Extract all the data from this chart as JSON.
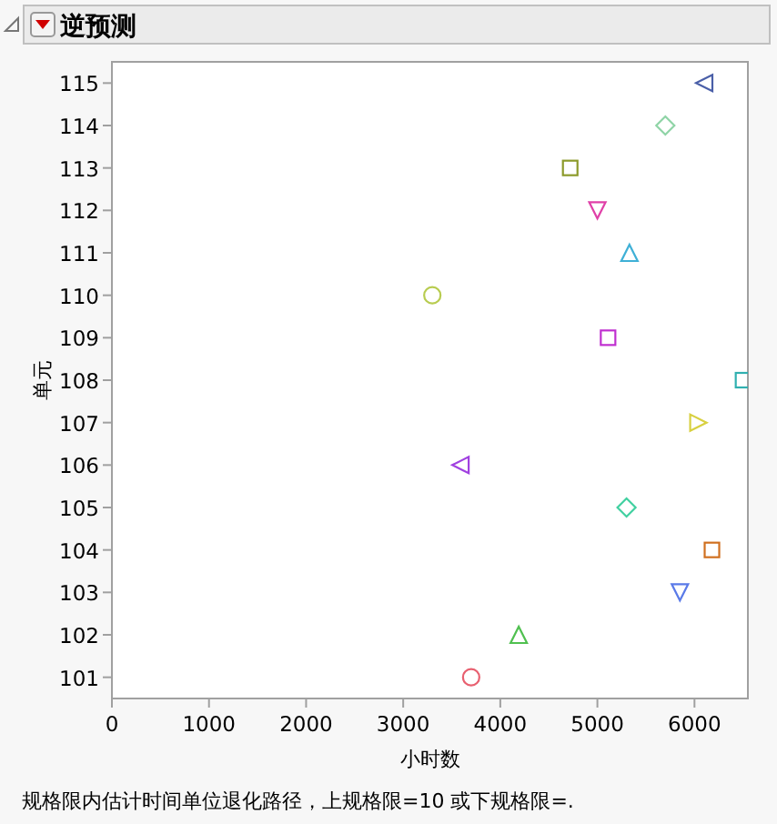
{
  "chart_data": {
    "type": "scatter",
    "title": "逆预测",
    "xlabel": "小时数",
    "ylabel": "单元",
    "annotations": [
      "规格限内估计时间单位退化路径，上规格限=10 或下规格限=."
    ],
    "xlim": [
      0,
      6550
    ],
    "xticks": [
      0,
      1000,
      2000,
      3000,
      4000,
      5000,
      6000
    ],
    "ylim": [
      100.5,
      115.5
    ],
    "yticks": [
      101,
      102,
      103,
      104,
      105,
      106,
      107,
      108,
      109,
      110,
      111,
      112,
      113,
      114,
      115
    ],
    "series": [
      {
        "color": "#e86070",
        "marker": "circle",
        "x": [
          3700
        ],
        "values": [
          101
        ]
      },
      {
        "color": "#50c050",
        "marker": "triangle",
        "x": [
          4190
        ],
        "values": [
          102
        ]
      },
      {
        "color": "#5a7ae8",
        "marker": "triangle-down",
        "x": [
          5850
        ],
        "values": [
          103
        ]
      },
      {
        "color": "#d07020",
        "marker": "square",
        "x": [
          6180
        ],
        "values": [
          104
        ]
      },
      {
        "color": "#40d0a0",
        "marker": "diamond",
        "x": [
          5300
        ],
        "values": [
          105
        ]
      },
      {
        "color": "#a040e0",
        "marker": "triangle-left",
        "x": [
          3590
        ],
        "values": [
          106
        ]
      },
      {
        "color": "#d8d040",
        "marker": "triangle-right",
        "x": [
          6040
        ],
        "values": [
          107
        ]
      },
      {
        "color": "#30b0b0",
        "marker": "square",
        "x": [
          6500
        ],
        "values": [
          108
        ]
      },
      {
        "color": "#c030d0",
        "marker": "square",
        "x": [
          5110
        ],
        "values": [
          109
        ]
      },
      {
        "color": "#b8cc50",
        "marker": "circle",
        "x": [
          3300
        ],
        "values": [
          110
        ]
      },
      {
        "color": "#3fb0d6",
        "marker": "triangle",
        "x": [
          5330
        ],
        "values": [
          111
        ]
      },
      {
        "color": "#e040a8",
        "marker": "triangle-down",
        "x": [
          5000
        ],
        "values": [
          112
        ]
      },
      {
        "color": "#8c9a2a",
        "marker": "square",
        "x": [
          4720
        ],
        "values": [
          113
        ]
      },
      {
        "color": "#8fd4a6",
        "marker": "diamond",
        "x": [
          5700
        ],
        "values": [
          114
        ]
      },
      {
        "color": "#4a5fa8",
        "marker": "triangle-left",
        "x": [
          6100
        ],
        "values": [
          115
        ]
      }
    ]
  }
}
